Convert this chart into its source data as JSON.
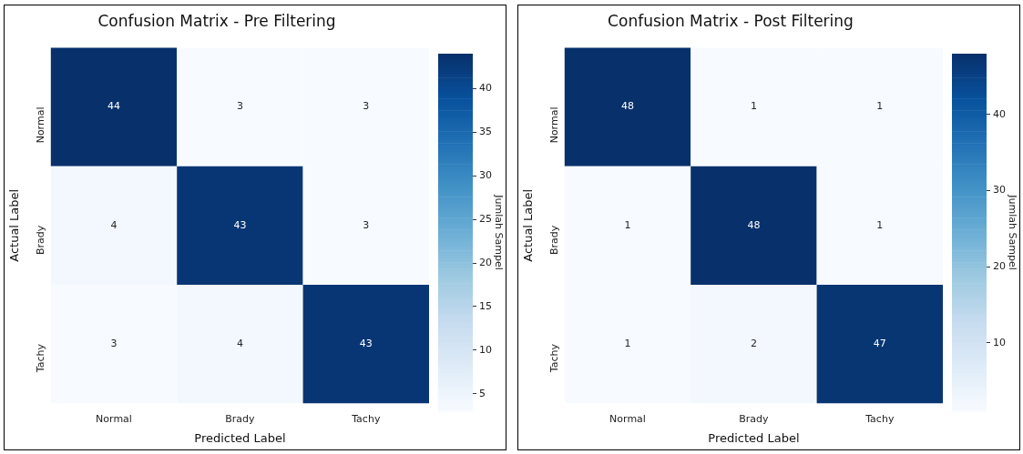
{
  "chart_data": [
    {
      "type": "heatmap",
      "title": "Confusion Matrix - Pre Filtering",
      "xlabel": "Predicted Label",
      "ylabel": "Actual Label",
      "clabel": "Jumlah Sampel",
      "categories": [
        "Normal",
        "Brady",
        "Tachy"
      ],
      "y_categories": [
        "Normal",
        "Brady",
        "Tachy"
      ],
      "cells": [
        [
          44,
          3,
          3
        ],
        [
          4,
          43,
          3
        ],
        [
          3,
          4,
          43
        ]
      ],
      "clim": [
        3,
        44
      ],
      "cticks": [
        5,
        10,
        15,
        20,
        25,
        30,
        35,
        40
      ],
      "data_labels": true
    },
    {
      "type": "heatmap",
      "title": "Confusion Matrix - Post Filtering",
      "xlabel": "Predicted Label",
      "ylabel": "Actual Label",
      "clabel": "Jumlah Sampel",
      "categories": [
        "Normal",
        "Brady",
        "Tachy"
      ],
      "y_categories": [
        "Normal",
        "Brady",
        "Tachy"
      ],
      "cells": [
        [
          48,
          1,
          1
        ],
        [
          1,
          48,
          1
        ],
        [
          1,
          2,
          47
        ]
      ],
      "clim": [
        1,
        48
      ],
      "cticks": [
        10,
        20,
        30,
        40
      ],
      "data_labels": true
    }
  ]
}
